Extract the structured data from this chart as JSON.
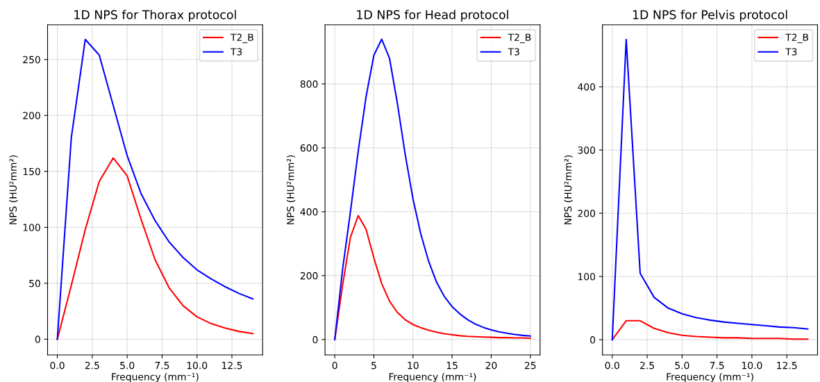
{
  "chart_data": [
    {
      "type": "line",
      "title": "1D NPS for Thorax protocol",
      "xlabel": "Frequency (mm⁻¹)",
      "ylabel": "NPS (HU²mm²)",
      "x": [
        0,
        1,
        2,
        3,
        4,
        5,
        6,
        7,
        8,
        9,
        10,
        11,
        12,
        13,
        14
      ],
      "series": [
        {
          "name": "T2_B",
          "color": "#ff0000",
          "values": [
            0,
            48,
            98,
            141,
            162,
            146,
            107,
            71,
            46,
            30,
            20,
            14,
            10,
            7,
            5
          ]
        },
        {
          "name": "T3",
          "color": "#0000ff",
          "values": [
            0,
            180,
            268,
            254,
            209,
            164,
            130,
            106,
            87,
            73,
            62,
            54,
            47,
            41,
            36
          ]
        }
      ],
      "xlim": [
        -0.7,
        14.7
      ],
      "xticks": [
        {
          "value": 0,
          "label": "0.0"
        },
        {
          "value": 2.5,
          "label": "2.5"
        },
        {
          "value": 5,
          "label": "5.0"
        },
        {
          "value": 7.5,
          "label": "7.5"
        },
        {
          "value": 10,
          "label": "10.0"
        },
        {
          "value": 12.5,
          "label": "12.5"
        }
      ],
      "ylim": [
        -14,
        281
      ],
      "yticks": [
        0,
        50,
        100,
        150,
        200,
        250
      ],
      "grid": true,
      "legend": "top right"
    },
    {
      "type": "line",
      "title": "1D NPS for Head protocol",
      "xlabel": "Frequency (mm⁻¹)",
      "ylabel": "NPS (HU²mm²)",
      "x": [
        0,
        1,
        2,
        3,
        4,
        5,
        6,
        7,
        8,
        9,
        10,
        11,
        12,
        13,
        14,
        15,
        16,
        17,
        18,
        19,
        20,
        21,
        22,
        23,
        24,
        25
      ],
      "series": [
        {
          "name": "T2_B",
          "color": "#ff0000",
          "values": [
            0,
            170,
            320,
            388,
            345,
            255,
            175,
            120,
            85,
            62,
            47,
            37,
            29,
            23,
            18,
            15,
            12,
            10,
            9,
            8,
            7,
            6,
            6,
            5,
            5,
            4
          ]
        },
        {
          "name": "T3",
          "color": "#0000ff",
          "values": [
            0,
            220,
            400,
            590,
            760,
            890,
            940,
            880,
            740,
            580,
            440,
            330,
            245,
            180,
            135,
            103,
            80,
            62,
            48,
            38,
            30,
            24,
            20,
            16,
            13,
            11
          ]
        }
      ],
      "xlim": [
        -1.25,
        26.25
      ],
      "xticks": [
        0,
        5,
        10,
        15,
        20,
        25
      ],
      "ylim": [
        -48,
        985
      ],
      "yticks": [
        0,
        200,
        400,
        600,
        800
      ],
      "grid": true,
      "legend": "top right"
    },
    {
      "type": "line",
      "title": "1D NPS for Pelvis protocol",
      "xlabel": "Frequency (mm⁻¹)",
      "ylabel": "NPS (HU²mm²)",
      "x": [
        0,
        1,
        2,
        3,
        4,
        5,
        6,
        7,
        8,
        9,
        10,
        11,
        12,
        13,
        14
      ],
      "series": [
        {
          "name": "T2_B",
          "color": "#ff0000",
          "values": [
            0,
            30,
            30,
            18,
            11,
            7,
            5,
            4,
            3,
            3,
            2,
            2,
            2,
            1,
            1
          ]
        },
        {
          "name": "T3",
          "color": "#0000ff",
          "values": [
            0,
            475,
            105,
            67,
            50,
            41,
            35,
            31,
            28,
            26,
            24,
            22,
            20,
            19,
            17
          ]
        }
      ],
      "xlim": [
        -0.7,
        14.7
      ],
      "xticks": [
        {
          "value": 0,
          "label": "0.0"
        },
        {
          "value": 2.5,
          "label": "2.5"
        },
        {
          "value": 5,
          "label": "5.0"
        },
        {
          "value": 7.5,
          "label": "7.5"
        },
        {
          "value": 10,
          "label": "10.0"
        },
        {
          "value": 12.5,
          "label": "12.5"
        }
      ],
      "ylim": [
        -24,
        498
      ],
      "yticks": [
        0,
        100,
        200,
        300,
        400
      ],
      "grid": true,
      "legend": "top right"
    }
  ]
}
